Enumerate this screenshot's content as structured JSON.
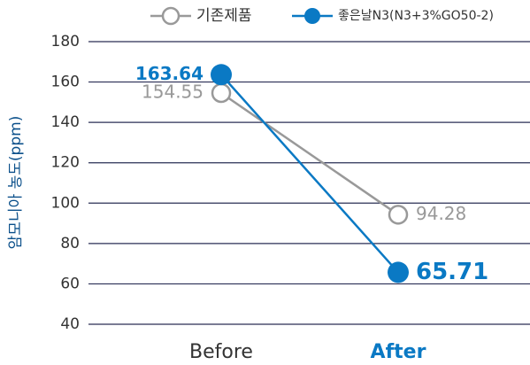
{
  "chart_data": {
    "type": "line",
    "y_label": "암모니아 농도(ppm)",
    "categories": [
      "Before",
      "After"
    ],
    "series": [
      {
        "name": "기존제품",
        "color": "#999999",
        "values": [
          154.55,
          94.28
        ]
      },
      {
        "name": "좋은날N3(N3+3%GO50-2)",
        "color": "#0a79c4",
        "values": [
          163.64,
          65.71
        ]
      }
    ],
    "ylim": [
      40,
      180
    ],
    "yticks": [
      40,
      60,
      80,
      100,
      120,
      140,
      160,
      180
    ],
    "grid": true
  }
}
